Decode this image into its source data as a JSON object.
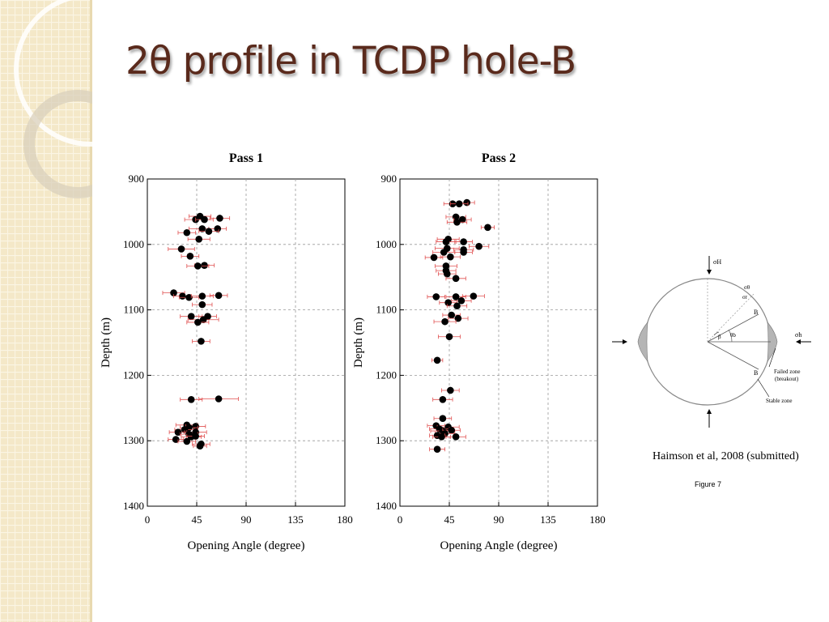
{
  "slide": {
    "title": "2θ profile in TCDP hole-B",
    "citation": "Haimson et al, 2008 (submitted)",
    "figure_label": "Figure 7"
  },
  "colors": {
    "title": "#5a2a1c",
    "sidebar": "#f4e8c8",
    "error_bar": "#e05050",
    "point": "#000000"
  },
  "chart_data": [
    {
      "type": "scatter",
      "title": "Pass 1",
      "xlabel": "Opening Angle (degree)",
      "ylabel": "Depth (m)",
      "xlim": [
        0,
        180
      ],
      "ylim": [
        1400,
        900
      ],
      "xticks": [
        0,
        45,
        90,
        135,
        180
      ],
      "yticks": [
        900,
        1000,
        1100,
        1200,
        1300,
        1400
      ],
      "grid": true,
      "points": [
        {
          "x": 48,
          "y": 957,
          "err": 10
        },
        {
          "x": 66,
          "y": 960,
          "err": 9
        },
        {
          "x": 44,
          "y": 962,
          "err": 10
        },
        {
          "x": 52,
          "y": 962,
          "err": 8
        },
        {
          "x": 50,
          "y": 976,
          "err": 12
        },
        {
          "x": 64,
          "y": 976,
          "err": 8
        },
        {
          "x": 56,
          "y": 980,
          "err": 9
        },
        {
          "x": 36,
          "y": 982,
          "err": 8
        },
        {
          "x": 47,
          "y": 992,
          "err": 10
        },
        {
          "x": 31,
          "y": 1007,
          "err": 12
        },
        {
          "x": 39,
          "y": 1018,
          "err": 8
        },
        {
          "x": 52,
          "y": 1032,
          "err": 9
        },
        {
          "x": 46,
          "y": 1033,
          "err": 10
        },
        {
          "x": 24,
          "y": 1074,
          "err": 10
        },
        {
          "x": 32,
          "y": 1079,
          "err": 8
        },
        {
          "x": 38,
          "y": 1081,
          "err": 9
        },
        {
          "x": 50,
          "y": 1079,
          "err": 10
        },
        {
          "x": 65,
          "y": 1078,
          "err": 8
        },
        {
          "x": 50,
          "y": 1092,
          "err": 9
        },
        {
          "x": 55,
          "y": 1110,
          "err": 8
        },
        {
          "x": 40,
          "y": 1110,
          "err": 10
        },
        {
          "x": 51,
          "y": 1115,
          "err": 14
        },
        {
          "x": 46,
          "y": 1119,
          "err": 10
        },
        {
          "x": 49,
          "y": 1148,
          "err": 8
        },
        {
          "x": 40,
          "y": 1237,
          "err": 10
        },
        {
          "x": 65,
          "y": 1236,
          "err": 18
        },
        {
          "x": 36,
          "y": 1276,
          "err": 10
        },
        {
          "x": 44,
          "y": 1278,
          "err": 9
        },
        {
          "x": 38,
          "y": 1280,
          "err": 8
        },
        {
          "x": 34,
          "y": 1283,
          "err": 9
        },
        {
          "x": 28,
          "y": 1287,
          "err": 8
        },
        {
          "x": 44,
          "y": 1287,
          "err": 10
        },
        {
          "x": 38,
          "y": 1290,
          "err": 8
        },
        {
          "x": 40,
          "y": 1294,
          "err": 9
        },
        {
          "x": 44,
          "y": 1293,
          "err": 8
        },
        {
          "x": 26,
          "y": 1298,
          "err": 7
        },
        {
          "x": 36,
          "y": 1301,
          "err": 8
        },
        {
          "x": 49,
          "y": 1305,
          "err": 8
        },
        {
          "x": 48,
          "y": 1308,
          "err": 6
        }
      ]
    },
    {
      "type": "scatter",
      "title": "Pass 2",
      "xlabel": "Opening Angle (degree)",
      "ylabel": "Depth (m)",
      "xlim": [
        0,
        180
      ],
      "ylim": [
        1400,
        900
      ],
      "xticks": [
        0,
        45,
        90,
        135,
        180
      ],
      "yticks": [
        900,
        1000,
        1100,
        1200,
        1300,
        1400
      ],
      "grid": true,
      "points": [
        {
          "x": 61,
          "y": 936,
          "err": 7
        },
        {
          "x": 48,
          "y": 938,
          "err": 8
        },
        {
          "x": 54,
          "y": 938,
          "err": 8
        },
        {
          "x": 51,
          "y": 958,
          "err": 9
        },
        {
          "x": 57,
          "y": 962,
          "err": 8
        },
        {
          "x": 52,
          "y": 966,
          "err": 9
        },
        {
          "x": 80,
          "y": 974,
          "err": 6
        },
        {
          "x": 44,
          "y": 992,
          "err": 10
        },
        {
          "x": 42,
          "y": 996,
          "err": 9
        },
        {
          "x": 58,
          "y": 996,
          "err": 8
        },
        {
          "x": 72,
          "y": 1003,
          "err": 9
        },
        {
          "x": 43,
          "y": 1006,
          "err": 11
        },
        {
          "x": 58,
          "y": 1008,
          "err": 9
        },
        {
          "x": 58,
          "y": 1012,
          "err": 8
        },
        {
          "x": 40,
          "y": 1012,
          "err": 10
        },
        {
          "x": 46,
          "y": 1019,
          "err": 9
        },
        {
          "x": 31,
          "y": 1020,
          "err": 8
        },
        {
          "x": 42,
          "y": 1033,
          "err": 10
        },
        {
          "x": 42,
          "y": 1040,
          "err": 9
        },
        {
          "x": 43,
          "y": 1045,
          "err": 8
        },
        {
          "x": 51,
          "y": 1052,
          "err": 9
        },
        {
          "x": 33,
          "y": 1080,
          "err": 8
        },
        {
          "x": 51,
          "y": 1080,
          "err": 9
        },
        {
          "x": 67,
          "y": 1079,
          "err": 10
        },
        {
          "x": 56,
          "y": 1086,
          "err": 9
        },
        {
          "x": 44,
          "y": 1089,
          "err": 8
        },
        {
          "x": 52,
          "y": 1094,
          "err": 9
        },
        {
          "x": 47,
          "y": 1108,
          "err": 8
        },
        {
          "x": 53,
          "y": 1113,
          "err": 9
        },
        {
          "x": 41,
          "y": 1118,
          "err": 10
        },
        {
          "x": 45,
          "y": 1141,
          "err": 10
        },
        {
          "x": 34,
          "y": 1177,
          "err": 5
        },
        {
          "x": 46,
          "y": 1223,
          "err": 8
        },
        {
          "x": 39,
          "y": 1237,
          "err": 9
        },
        {
          "x": 39,
          "y": 1266,
          "err": 8
        },
        {
          "x": 33,
          "y": 1277,
          "err": 8
        },
        {
          "x": 44,
          "y": 1279,
          "err": 10
        },
        {
          "x": 36,
          "y": 1282,
          "err": 9
        },
        {
          "x": 39,
          "y": 1285,
          "err": 11
        },
        {
          "x": 47,
          "y": 1284,
          "err": 8
        },
        {
          "x": 41,
          "y": 1289,
          "err": 9
        },
        {
          "x": 34,
          "y": 1292,
          "err": 7
        },
        {
          "x": 38,
          "y": 1294,
          "err": 8
        },
        {
          "x": 51,
          "y": 1294,
          "err": 9
        },
        {
          "x": 34,
          "y": 1313,
          "err": 7
        }
      ]
    }
  ],
  "diagram": {
    "labels": {
      "sigma_H": "σH",
      "sigma_h": "σh",
      "sigma_theta": "σθ",
      "sigma_r": "σr",
      "B_top": "B",
      "B_bottom": "B",
      "beta": "β",
      "theta_b": "θb",
      "failed_zone": "Failed zone",
      "breakout": "(breakout)",
      "stable_zone": "Stable zone"
    }
  }
}
